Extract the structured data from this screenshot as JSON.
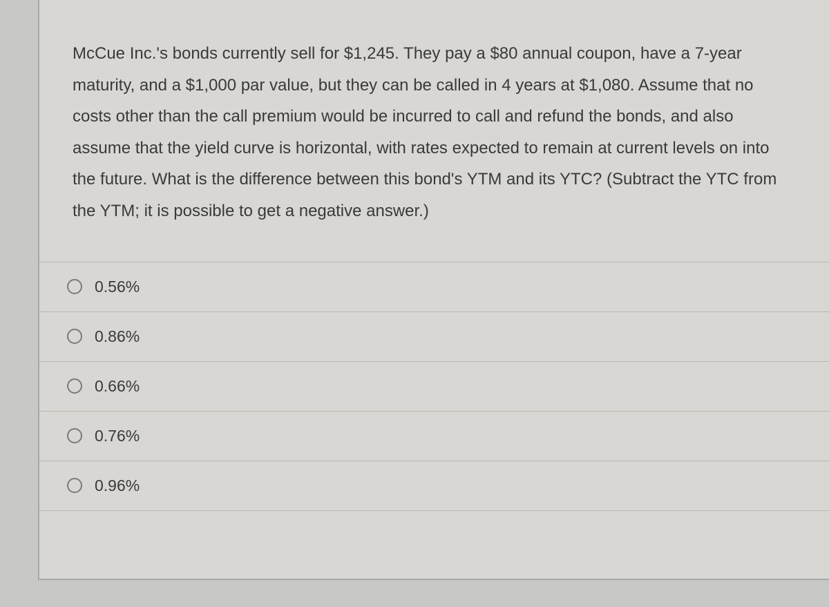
{
  "question": {
    "text": "McCue Inc.'s bonds currently sell for $1,245.  They pay a $80 annual coupon, have a 7-year maturity, and a $1,000 par value, but they can be called in 4 years at $1,080.  Assume that no costs other than the call premium would be incurred to call and refund the bonds, and also assume that the yield curve is horizontal, with rates expected to remain at current levels on into the future.  What is the difference between this bond's YTM and its YTC? (Subtract the YTC from the YTM; it is possible to get a negative answer.)"
  },
  "options": [
    {
      "label": "0.56%"
    },
    {
      "label": "0.86%"
    },
    {
      "label": "0.66%"
    },
    {
      "label": "0.76%"
    },
    {
      "label": "0.96%"
    }
  ],
  "styles": {
    "background_color": "#d8d7d3",
    "text_color": "#3a3a3a",
    "border_color": "#b8b8b5",
    "radio_border_color": "#7a7a78",
    "question_fontsize": 24,
    "option_fontsize": 23
  }
}
